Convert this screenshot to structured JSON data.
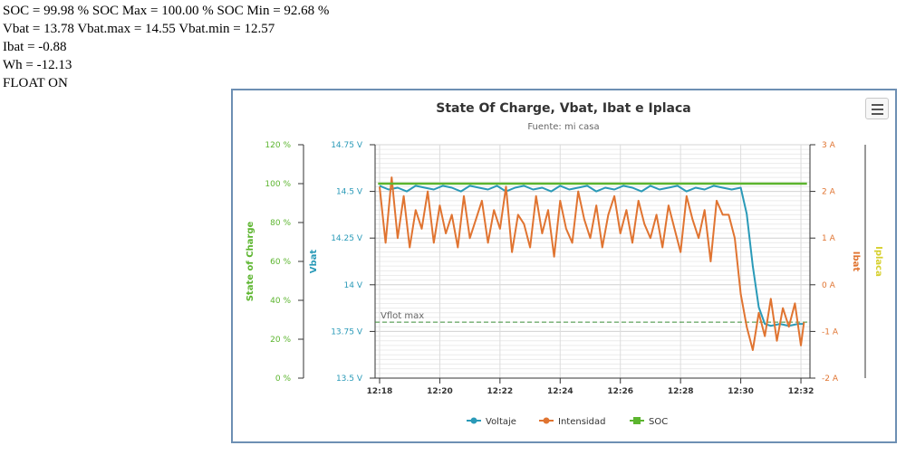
{
  "status": {
    "soc_line": "SOC = 99.98 % SOC Max = 100.00 % SOC Min = 92.68 %",
    "vbat_line": "Vbat = 13.78 Vbat.max = 14.55 Vbat.min = 12.57",
    "ibat_line": "Ibat = -0.88",
    "wh_line": "Wh = -12.13",
    "float_line": "FLOAT ON"
  },
  "menu_icon": "hamburger-menu-icon",
  "chart_data": {
    "type": "line",
    "title": "State Of Charge, Vbat, Ibat e Iplaca",
    "subtitle": "Fuente: mi casa",
    "x_ticks": [
      "12:18",
      "12:20",
      "12:22",
      "12:24",
      "12:26",
      "12:28",
      "12:30",
      "12:32"
    ],
    "x_range_minutes": [
      12.85,
      27.3
    ],
    "axes": {
      "soc": {
        "label": "State of Charge",
        "color": "#5cb52f",
        "range": [
          0,
          120
        ],
        "ticks": [
          "0 %",
          "20 %",
          "40 %",
          "60 %",
          "80 %",
          "100 %",
          "120 %"
        ]
      },
      "vbat": {
        "label": "Vbat",
        "color": "#2a9ab8",
        "range": [
          13.5,
          14.75
        ],
        "ticks": [
          "13.5 V",
          "13.75 V",
          "14 V",
          "14.25 V",
          "14.5 V",
          "14.75 V"
        ]
      },
      "ibat": {
        "label": "Ibat",
        "color": "#e07431",
        "range": [
          -2,
          3
        ],
        "ticks": [
          "-2 A",
          "-1 A",
          "0 A",
          "1 A",
          "2 A",
          "3 A"
        ]
      },
      "iplaca": {
        "label": "Iplaca",
        "color": "#d6cf2c"
      }
    },
    "plot_line": {
      "label": "Vflot max",
      "value": 13.8,
      "axis": "vbat",
      "color": "#3d8f3a"
    },
    "legend": {
      "placement": "bottom-center"
    },
    "series": [
      {
        "name": "Voltaje",
        "color": "#2a9ab8",
        "axis": "vbat",
        "x": [
          13.0,
          13.3,
          13.6,
          13.9,
          14.2,
          14.5,
          14.8,
          15.1,
          15.4,
          15.7,
          16.0,
          16.3,
          16.6,
          16.9,
          17.2,
          17.5,
          17.8,
          18.1,
          18.4,
          18.7,
          19.0,
          19.3,
          19.6,
          19.9,
          20.2,
          20.5,
          20.8,
          21.1,
          21.4,
          21.7,
          22.0,
          22.3,
          22.6,
          22.9,
          23.2,
          23.5,
          23.8,
          24.1,
          24.4,
          24.7,
          25.0,
          25.2,
          25.4,
          25.6,
          25.8,
          26.0,
          26.3,
          26.6,
          26.9,
          27.1
        ],
        "y": [
          14.53,
          14.51,
          14.52,
          14.5,
          14.53,
          14.52,
          14.51,
          14.53,
          14.52,
          14.5,
          14.53,
          14.52,
          14.51,
          14.53,
          14.5,
          14.52,
          14.53,
          14.51,
          14.52,
          14.5,
          14.53,
          14.51,
          14.52,
          14.53,
          14.5,
          14.52,
          14.51,
          14.53,
          14.52,
          14.5,
          14.53,
          14.51,
          14.52,
          14.53,
          14.5,
          14.52,
          14.51,
          14.53,
          14.52,
          14.51,
          14.52,
          14.38,
          14.1,
          13.88,
          13.79,
          13.78,
          13.79,
          13.78,
          13.79,
          13.79
        ]
      },
      {
        "name": "Intensidad",
        "color": "#e07431",
        "axis": "ibat",
        "x": [
          13.0,
          13.2,
          13.4,
          13.6,
          13.8,
          14.0,
          14.2,
          14.4,
          14.6,
          14.8,
          15.0,
          15.2,
          15.4,
          15.6,
          15.8,
          16.0,
          16.2,
          16.4,
          16.6,
          16.8,
          17.0,
          17.2,
          17.4,
          17.6,
          17.8,
          18.0,
          18.2,
          18.4,
          18.6,
          18.8,
          19.0,
          19.2,
          19.4,
          19.6,
          19.8,
          20.0,
          20.2,
          20.4,
          20.6,
          20.8,
          21.0,
          21.2,
          21.4,
          21.6,
          21.8,
          22.0,
          22.2,
          22.4,
          22.6,
          22.8,
          23.0,
          23.2,
          23.4,
          23.6,
          23.8,
          24.0,
          24.2,
          24.4,
          24.6,
          24.8,
          25.0,
          25.2,
          25.4,
          25.6,
          25.8,
          26.0,
          26.2,
          26.4,
          26.6,
          26.8,
          27.0,
          27.1
        ],
        "y": [
          2.1,
          0.9,
          2.3,
          1.0,
          1.9,
          0.8,
          1.6,
          1.2,
          2.0,
          0.9,
          1.7,
          1.1,
          1.5,
          0.8,
          1.9,
          1.0,
          1.4,
          1.8,
          0.9,
          1.6,
          1.2,
          2.1,
          0.7,
          1.5,
          1.3,
          0.8,
          1.9,
          1.1,
          1.6,
          0.6,
          1.8,
          1.2,
          0.9,
          2.0,
          1.4,
          1.0,
          1.7,
          0.8,
          1.5,
          1.9,
          1.1,
          1.6,
          0.9,
          1.8,
          1.3,
          1.0,
          1.5,
          0.8,
          1.7,
          1.2,
          0.7,
          1.9,
          1.4,
          1.0,
          1.6,
          0.5,
          1.8,
          1.5,
          1.5,
          1.0,
          -0.2,
          -0.9,
          -1.4,
          -0.6,
          -1.1,
          -0.3,
          -1.2,
          -0.5,
          -0.9,
          -0.4,
          -1.3,
          -0.8
        ]
      },
      {
        "name": "SOC",
        "color": "#5cb52f",
        "axis": "soc",
        "x": [
          12.95,
          27.2
        ],
        "y": [
          100,
          100
        ]
      }
    ]
  }
}
